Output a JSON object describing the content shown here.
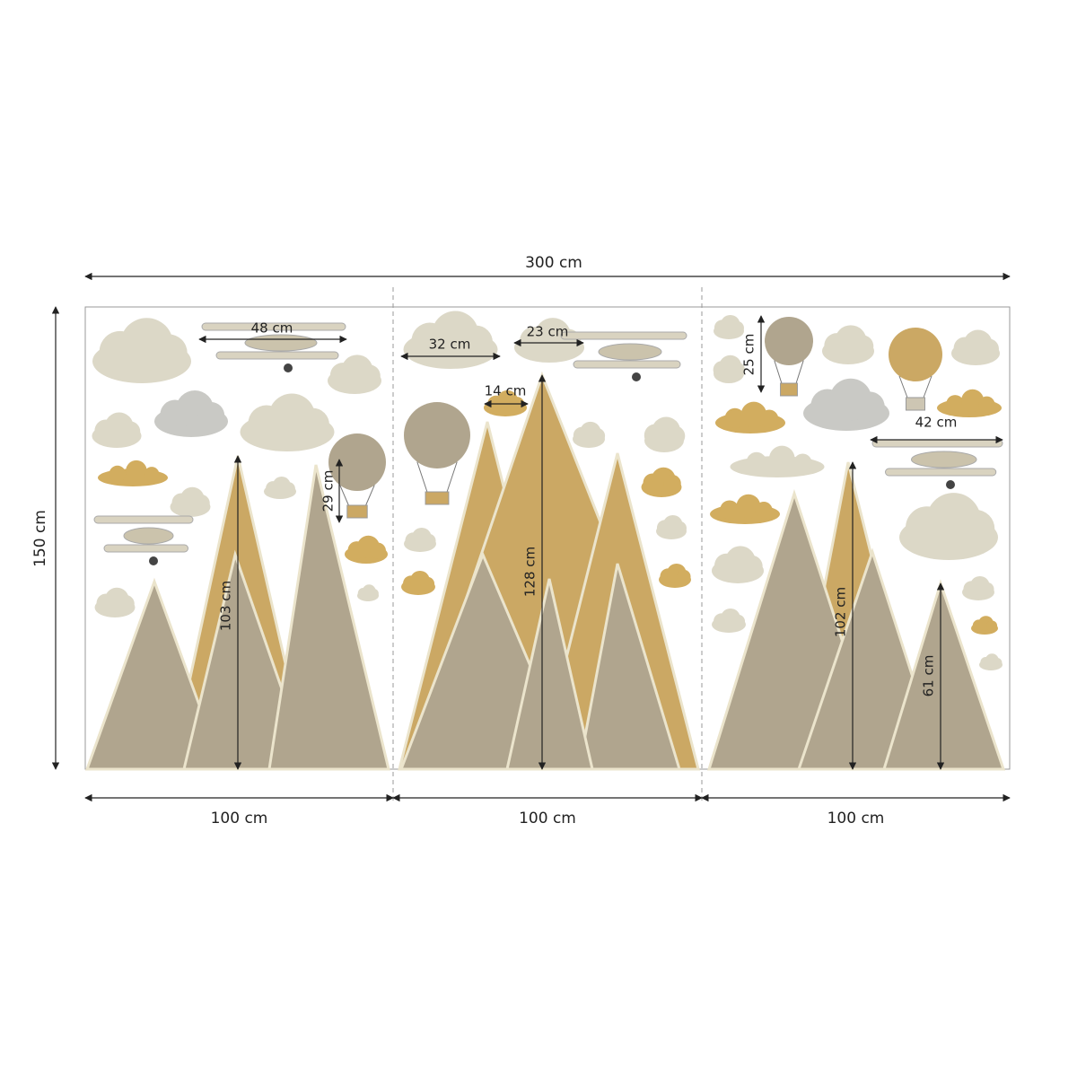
{
  "dimensions": {
    "total_width": "300 cm",
    "total_height": "150 cm",
    "panels": [
      "100 cm",
      "100 cm",
      "100 cm"
    ]
  },
  "measurements": [
    {
      "label": "48 cm"
    },
    {
      "label": "32 cm"
    },
    {
      "label": "23 cm"
    },
    {
      "label": "14 cm"
    },
    {
      "label": "29 cm"
    },
    {
      "label": "103 cm"
    },
    {
      "label": "128 cm"
    },
    {
      "label": "25 cm"
    },
    {
      "label": "42 cm"
    },
    {
      "label": "102 cm"
    },
    {
      "label": "61 cm"
    }
  ]
}
